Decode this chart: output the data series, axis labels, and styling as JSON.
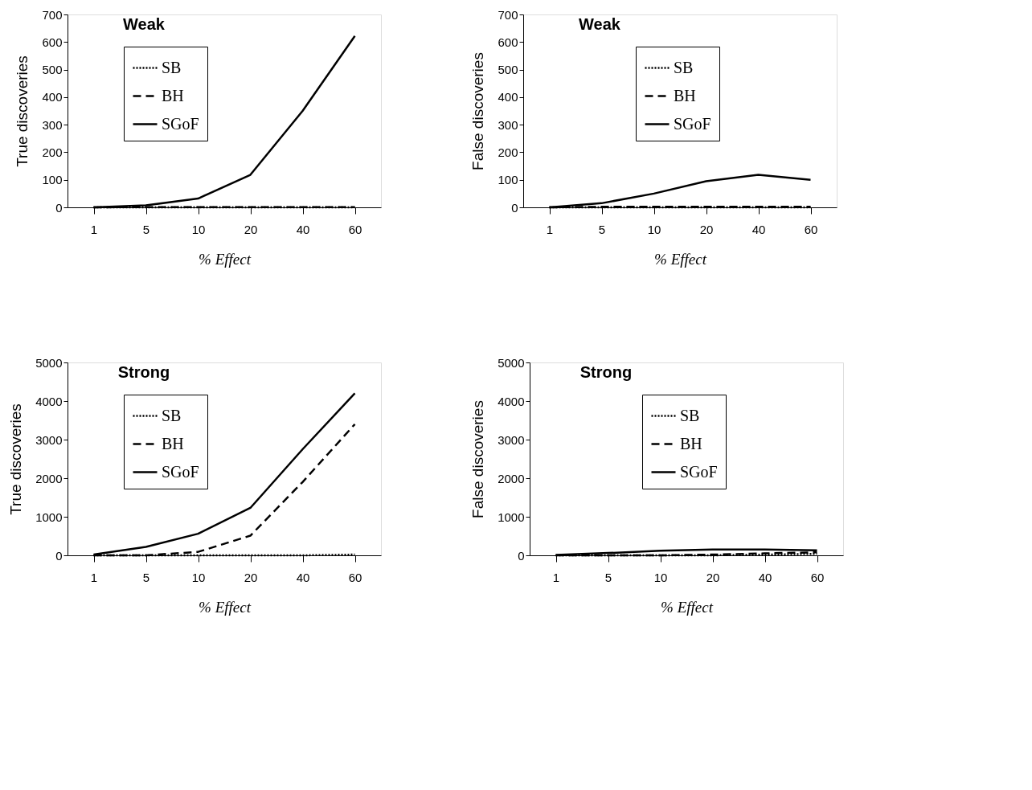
{
  "chart_data": [
    {
      "type": "line",
      "title": "Weak",
      "xlabel": "% Effect",
      "ylabel": "True discoveries",
      "categories": [
        "1",
        "5",
        "10",
        "20",
        "40",
        "60"
      ],
      "ylim": [
        0,
        700
      ],
      "yticks": [
        0,
        100,
        200,
        300,
        400,
        500,
        600,
        700
      ],
      "grid": false,
      "legend": "top left",
      "series": [
        {
          "name": "SB",
          "color": "#000000",
          "line_style": "dotted",
          "values": [
            0,
            0,
            0,
            0,
            0,
            0
          ]
        },
        {
          "name": "BH",
          "color": "#000000",
          "line_style": "dashed",
          "values": [
            0,
            1,
            1,
            1,
            1,
            1
          ]
        },
        {
          "name": "SGoF",
          "color": "#000000",
          "line_style": "solid",
          "values": [
            0,
            7,
            32,
            118,
            350,
            622
          ]
        }
      ]
    },
    {
      "type": "line",
      "title": "Weak",
      "xlabel": "% Effect",
      "ylabel": "False discoveries",
      "categories": [
        "1",
        "5",
        "10",
        "20",
        "40",
        "60"
      ],
      "ylim": [
        0,
        700
      ],
      "yticks": [
        0,
        100,
        200,
        300,
        400,
        500,
        600,
        700
      ],
      "grid": false,
      "legend": "top",
      "series": [
        {
          "name": "SB",
          "color": "#000000",
          "line_style": "dotted",
          "values": [
            0,
            0,
            0,
            0,
            0,
            0
          ]
        },
        {
          "name": "BH",
          "color": "#000000",
          "line_style": "dashed",
          "values": [
            0,
            2,
            2,
            2,
            2,
            2
          ]
        },
        {
          "name": "SGoF",
          "color": "#000000",
          "line_style": "solid",
          "values": [
            0,
            15,
            50,
            95,
            118,
            100
          ]
        }
      ]
    },
    {
      "type": "line",
      "title": "Strong",
      "xlabel": "% Effect",
      "ylabel": "True discoveries",
      "categories": [
        "1",
        "5",
        "10",
        "20",
        "40",
        "60"
      ],
      "ylim": [
        0,
        5000
      ],
      "yticks": [
        0,
        1000,
        2000,
        3000,
        4000,
        5000
      ],
      "grid": false,
      "legend": "top left",
      "series": [
        {
          "name": "SB",
          "color": "#000000",
          "line_style": "dotted",
          "values": [
            0,
            0,
            0,
            0,
            0,
            20
          ]
        },
        {
          "name": "BH",
          "color": "#000000",
          "line_style": "dashed",
          "values": [
            0,
            0,
            90,
            510,
            1900,
            3400
          ]
        },
        {
          "name": "SGoF",
          "color": "#000000",
          "line_style": "solid",
          "values": [
            20,
            220,
            560,
            1230,
            2750,
            4200
          ]
        }
      ]
    },
    {
      "type": "line",
      "title": "Strong",
      "xlabel": "% Effect",
      "ylabel": "False discoveries",
      "categories": [
        "1",
        "5",
        "10",
        "20",
        "40",
        "60"
      ],
      "ylim": [
        0,
        5000
      ],
      "yticks": [
        0,
        1000,
        2000,
        3000,
        4000,
        5000
      ],
      "grid": false,
      "legend": "top",
      "series": [
        {
          "name": "SB",
          "color": "#000000",
          "line_style": "dotted",
          "values": [
            0,
            0,
            0,
            0,
            20,
            40
          ]
        },
        {
          "name": "BH",
          "color": "#000000",
          "line_style": "dashed",
          "values": [
            0,
            0,
            0,
            20,
            50,
            80
          ]
        },
        {
          "name": "SGoF",
          "color": "#000000",
          "line_style": "solid",
          "values": [
            10,
            60,
            120,
            150,
            150,
            130
          ]
        }
      ]
    }
  ]
}
